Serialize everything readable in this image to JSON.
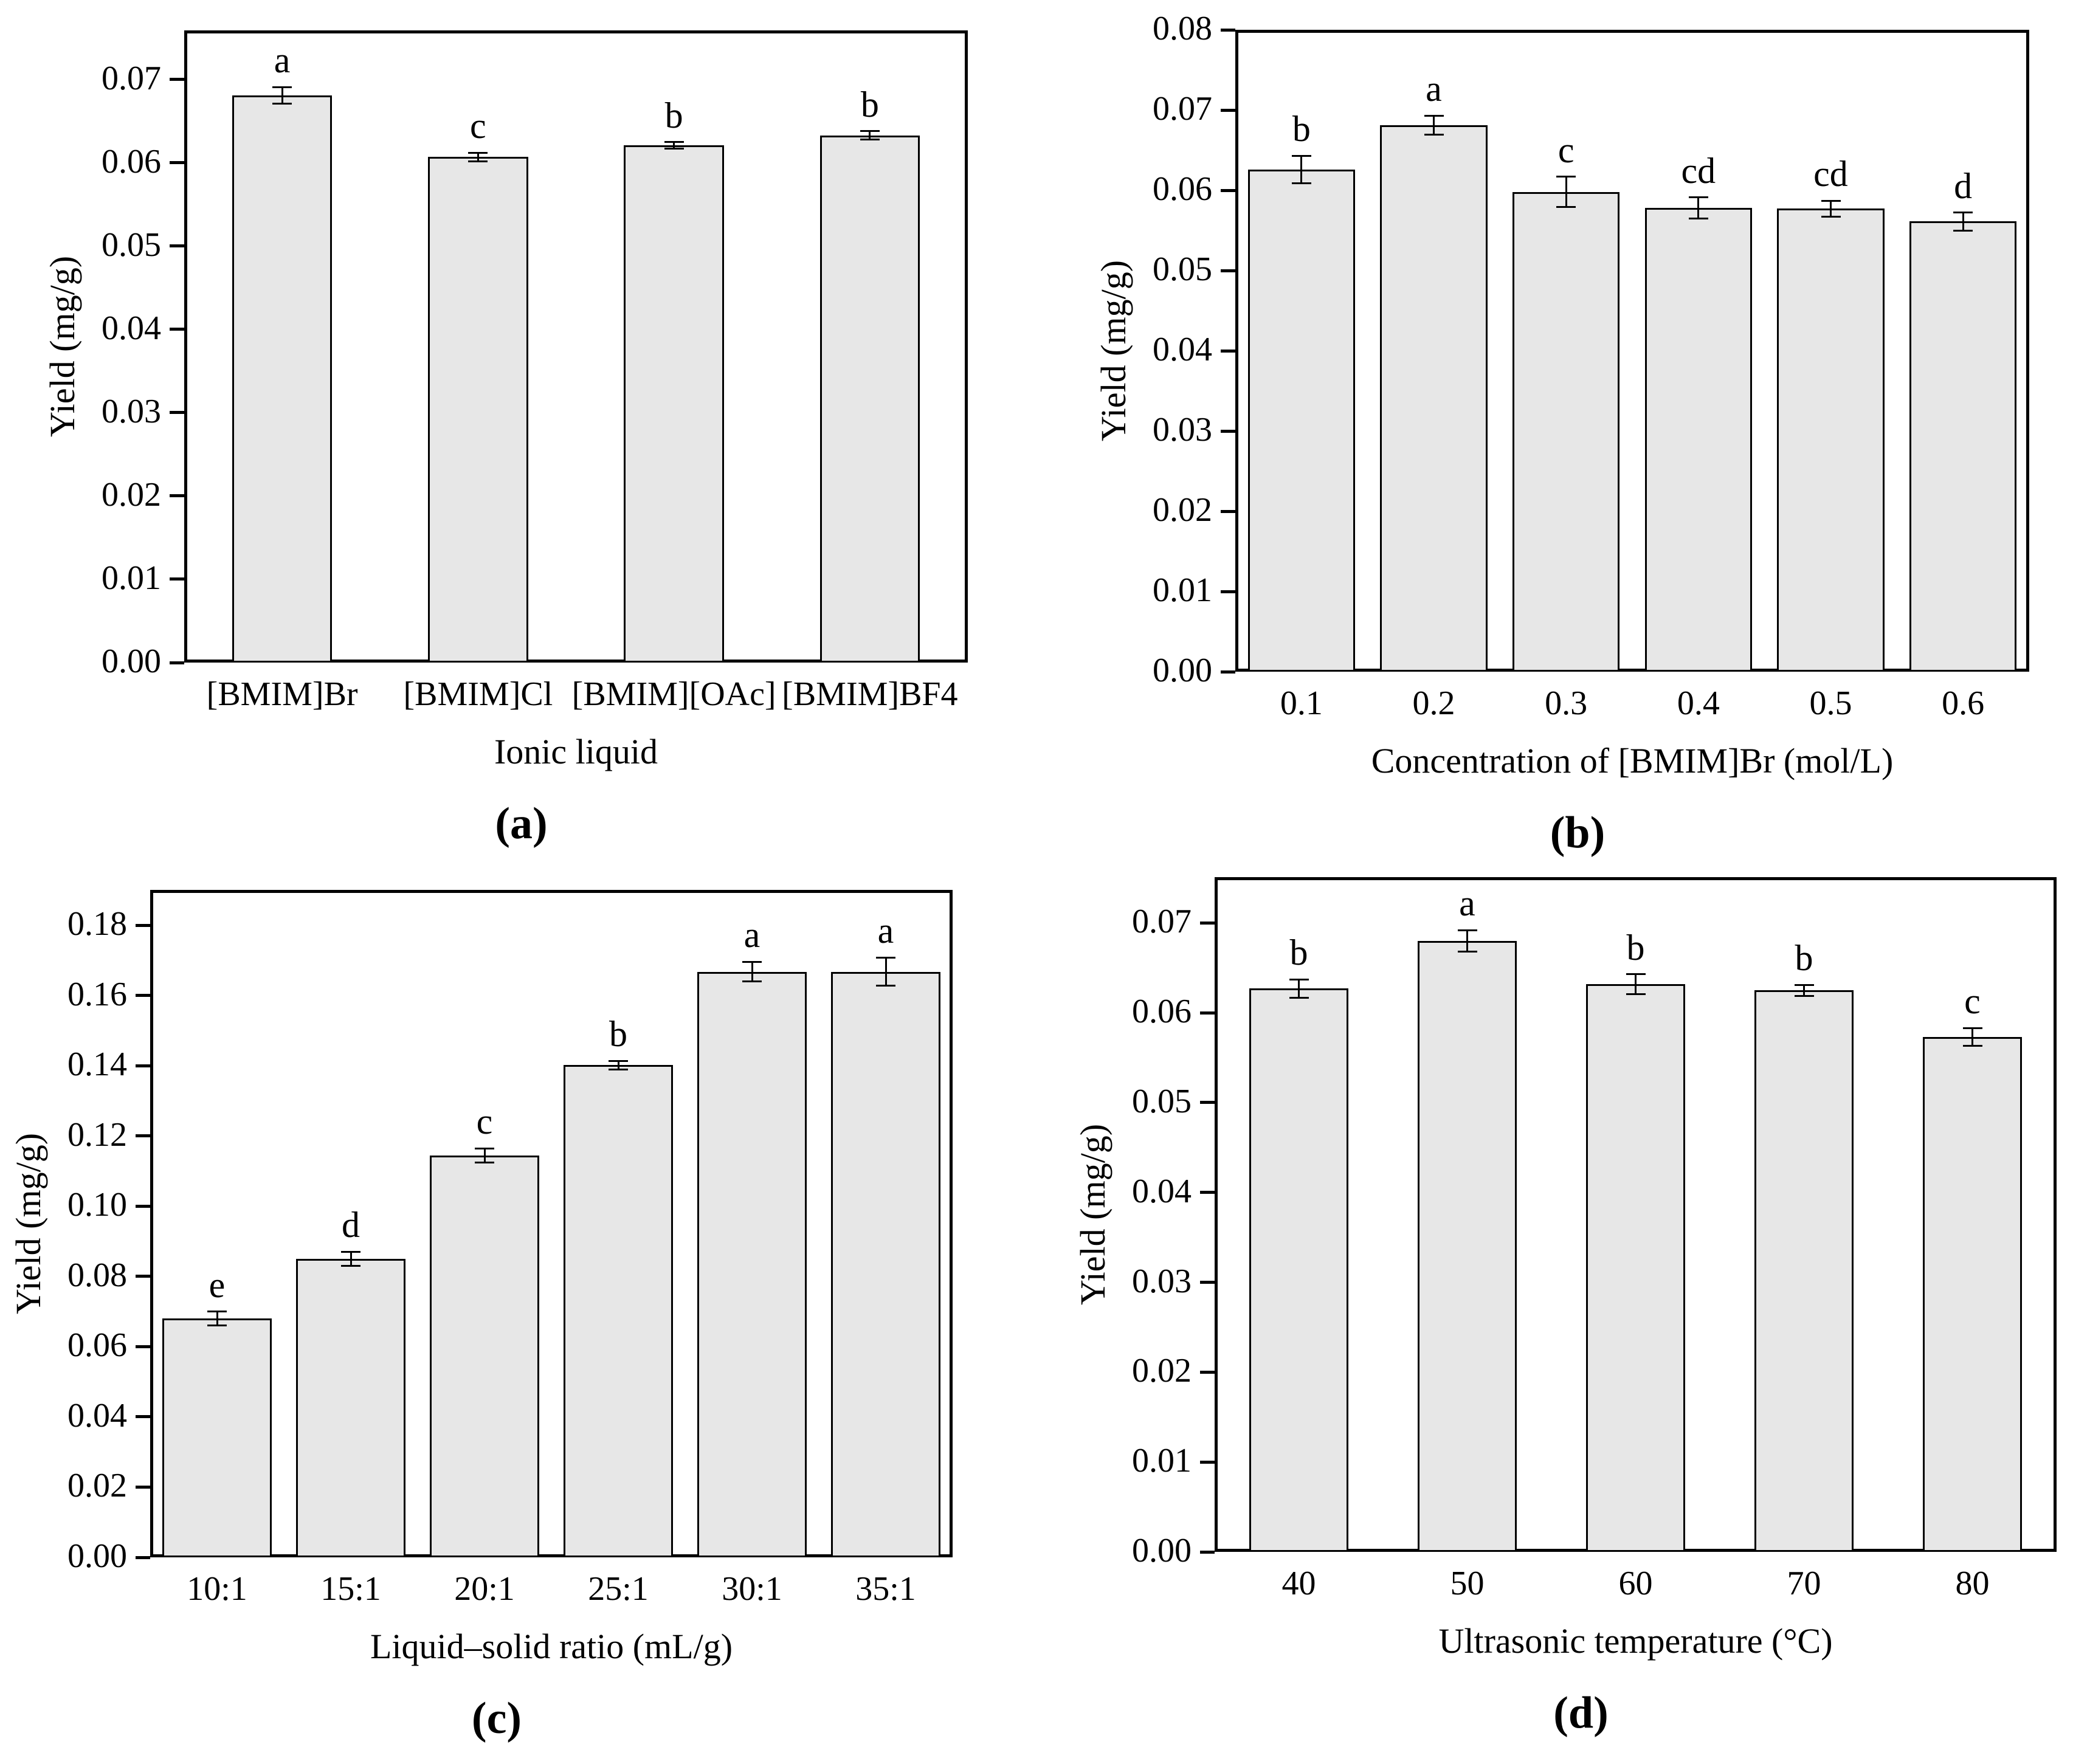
{
  "figure": {
    "background": "#ffffff",
    "text_color": "#000000",
    "axis_color": "#000000",
    "bar_fill": "#e7e7e7",
    "bar_border": "#000000"
  },
  "chart_data": [
    {
      "type": "bar",
      "panel_label": "(a)",
      "xlabel": "Ionic liquid",
      "ylabel": "Yield (mg/g)",
      "categories": [
        "[BMIM]Br",
        "[BMIM]Cl",
        "[BMIM][OAc]",
        "[BMIM]BF4"
      ],
      "values": [
        0.0681,
        0.0607,
        0.0621,
        0.0633
      ],
      "errors": [
        0.001,
        0.0005,
        0.0004,
        0.0005
      ],
      "sig_letters": [
        "a",
        "c",
        "b",
        "b"
      ],
      "ylim": [
        0,
        0.0759
      ],
      "yticks": [
        0,
        0.01,
        0.02,
        0.03,
        0.04,
        0.05,
        0.06,
        0.07
      ],
      "ytick_labels": [
        "0.00",
        "0.01",
        "0.02",
        "0.03",
        "0.04",
        "0.05",
        "0.06",
        "0.07"
      ],
      "grid": false,
      "legend": false
    },
    {
      "type": "bar",
      "panel_label": "(b)",
      "xlabel": "Concentration of [BMIM]Br (mol/L)",
      "ylabel": "Yield (mg/g)",
      "categories": [
        "0.1",
        "0.2",
        "0.3",
        "0.4",
        "0.5",
        "0.6"
      ],
      "values": [
        0.0626,
        0.0681,
        0.0598,
        0.0578,
        0.0577,
        0.0561
      ],
      "errors": [
        0.0017,
        0.0012,
        0.0019,
        0.0013,
        0.001,
        0.0011
      ],
      "sig_letters": [
        "b",
        "a",
        "c",
        "cd",
        "cd",
        "d"
      ],
      "ylim": [
        0,
        0.08
      ],
      "yticks": [
        0,
        0.01,
        0.02,
        0.03,
        0.04,
        0.05,
        0.06,
        0.07,
        0.08
      ],
      "ytick_labels": [
        "0.00",
        "0.01",
        "0.02",
        "0.03",
        "0.04",
        "0.05",
        "0.06",
        "0.07",
        "0.08"
      ],
      "grid": false,
      "legend": false
    },
    {
      "type": "bar",
      "panel_label": "(c)",
      "xlabel": "Liquid–solid ratio (mL/g)",
      "ylabel": "Yield (mg/g)",
      "categories": [
        "10:1",
        "15:1",
        "20:1",
        "25:1",
        "30:1",
        "35:1"
      ],
      "values": [
        0.068,
        0.085,
        0.1145,
        0.1402,
        0.1668,
        0.1668
      ],
      "errors": [
        0.002,
        0.002,
        0.002,
        0.0012,
        0.0028,
        0.004
      ],
      "sig_letters": [
        "e",
        "d",
        "c",
        "b",
        "a",
        "a"
      ],
      "ylim": [
        0,
        0.1901
      ],
      "yticks": [
        0,
        0.02,
        0.04,
        0.06,
        0.08,
        0.1,
        0.12,
        0.14,
        0.16,
        0.18
      ],
      "ytick_labels": [
        "0.00",
        "0.02",
        "0.04",
        "0.06",
        "0.08",
        "0.10",
        "0.12",
        "0.14",
        "0.16",
        "0.18"
      ],
      "grid": false,
      "legend": false
    },
    {
      "type": "bar",
      "panel_label": "(d)",
      "xlabel": "Ultrasonic temperature (°C)",
      "ylabel": "Yield (mg/g)",
      "categories": [
        "40",
        "50",
        "60",
        "70",
        "80"
      ],
      "values": [
        0.0627,
        0.068,
        0.0632,
        0.0625,
        0.0573
      ],
      "errors": [
        0.001,
        0.0012,
        0.0011,
        0.0006,
        0.001
      ],
      "sig_letters": [
        "b",
        "a",
        "b",
        "b",
        "c"
      ],
      "ylim": [
        0,
        0.0751
      ],
      "yticks": [
        0,
        0.01,
        0.02,
        0.03,
        0.04,
        0.05,
        0.06,
        0.07
      ],
      "ytick_labels": [
        "0.00",
        "0.01",
        "0.02",
        "0.03",
        "0.04",
        "0.05",
        "0.06",
        "0.07"
      ],
      "grid": false,
      "legend": false
    }
  ]
}
